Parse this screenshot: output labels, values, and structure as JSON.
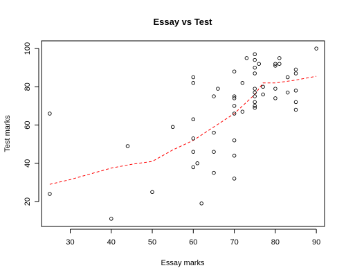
{
  "chart_data": {
    "type": "scatter",
    "title": "Essay vs Test",
    "xlabel": "Essay marks",
    "ylabel": "Test marks",
    "xlim": [
      23,
      92
    ],
    "ylim": [
      7,
      104
    ],
    "x_ticks": [
      30,
      40,
      50,
      60,
      70,
      80,
      90
    ],
    "y_ticks": [
      20,
      40,
      60,
      80,
      100
    ],
    "x_tick_labels": [
      "30",
      "40",
      "50",
      "60",
      "70",
      "80",
      "90"
    ],
    "y_tick_labels": [
      "20",
      "40",
      "60",
      "80",
      "100"
    ],
    "grid": false,
    "legend": "none",
    "colors": {
      "points": "#000000",
      "smooth_line": "#ff0000"
    },
    "points": [
      {
        "x": 25,
        "y": 66
      },
      {
        "x": 25,
        "y": 24
      },
      {
        "x": 40,
        "y": 11
      },
      {
        "x": 44,
        "y": 49
      },
      {
        "x": 50,
        "y": 25
      },
      {
        "x": 55,
        "y": 59
      },
      {
        "x": 60,
        "y": 85
      },
      {
        "x": 60,
        "y": 82
      },
      {
        "x": 60,
        "y": 63
      },
      {
        "x": 60,
        "y": 53
      },
      {
        "x": 60,
        "y": 46
      },
      {
        "x": 60,
        "y": 38
      },
      {
        "x": 61,
        "y": 40
      },
      {
        "x": 62,
        "y": 19
      },
      {
        "x": 65,
        "y": 75
      },
      {
        "x": 66,
        "y": 79
      },
      {
        "x": 65,
        "y": 56
      },
      {
        "x": 65,
        "y": 46
      },
      {
        "x": 65,
        "y": 35
      },
      {
        "x": 70,
        "y": 88
      },
      {
        "x": 70,
        "y": 75
      },
      {
        "x": 70,
        "y": 74
      },
      {
        "x": 70,
        "y": 70
      },
      {
        "x": 70,
        "y": 66
      },
      {
        "x": 70,
        "y": 52
      },
      {
        "x": 70,
        "y": 44
      },
      {
        "x": 70,
        "y": 32
      },
      {
        "x": 72,
        "y": 82
      },
      {
        "x": 72,
        "y": 67
      },
      {
        "x": 73,
        "y": 95
      },
      {
        "x": 75,
        "y": 97
      },
      {
        "x": 75,
        "y": 94
      },
      {
        "x": 75,
        "y": 90
      },
      {
        "x": 75,
        "y": 87
      },
      {
        "x": 75,
        "y": 79
      },
      {
        "x": 75,
        "y": 77
      },
      {
        "x": 75,
        "y": 75
      },
      {
        "x": 75,
        "y": 72
      },
      {
        "x": 75,
        "y": 70
      },
      {
        "x": 75,
        "y": 69
      },
      {
        "x": 76,
        "y": 92
      },
      {
        "x": 77,
        "y": 80
      },
      {
        "x": 77,
        "y": 76
      },
      {
        "x": 80,
        "y": 91
      },
      {
        "x": 80,
        "y": 92
      },
      {
        "x": 80,
        "y": 79
      },
      {
        "x": 80,
        "y": 74
      },
      {
        "x": 81,
        "y": 95
      },
      {
        "x": 81,
        "y": 92
      },
      {
        "x": 83,
        "y": 85
      },
      {
        "x": 83,
        "y": 77
      },
      {
        "x": 85,
        "y": 89
      },
      {
        "x": 85,
        "y": 87
      },
      {
        "x": 85,
        "y": 78
      },
      {
        "x": 85,
        "y": 72
      },
      {
        "x": 85,
        "y": 68
      },
      {
        "x": 90,
        "y": 100
      }
    ],
    "smooth_line": [
      {
        "x": 25,
        "y": 29
      },
      {
        "x": 30,
        "y": 31.5
      },
      {
        "x": 35,
        "y": 34.5
      },
      {
        "x": 40,
        "y": 37.5
      },
      {
        "x": 45,
        "y": 39.5
      },
      {
        "x": 50,
        "y": 41
      },
      {
        "x": 55,
        "y": 47
      },
      {
        "x": 60,
        "y": 52
      },
      {
        "x": 65,
        "y": 59
      },
      {
        "x": 70,
        "y": 66
      },
      {
        "x": 75,
        "y": 76
      },
      {
        "x": 77,
        "y": 82
      },
      {
        "x": 80,
        "y": 82
      },
      {
        "x": 85,
        "y": 83.5
      },
      {
        "x": 90,
        "y": 85.5
      }
    ]
  }
}
